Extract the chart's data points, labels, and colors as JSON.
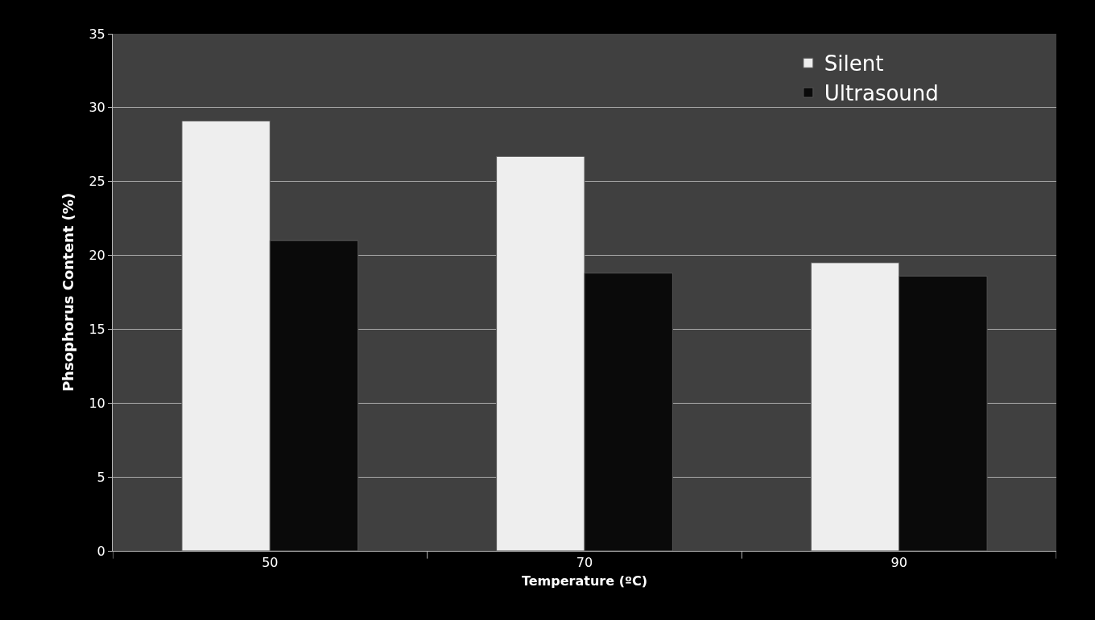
{
  "chart_data": {
    "type": "bar",
    "xlabel": "Temperature (ºC)",
    "ylabel": "Phsophorus Content (%)",
    "categories": [
      "50",
      "70",
      "90"
    ],
    "series": [
      {
        "name": "Silent",
        "color": "#eeeeee",
        "values": [
          29.1,
          26.7,
          19.5
        ]
      },
      {
        "name": "Ultrasound",
        "color": "#0a0a0a",
        "values": [
          21.0,
          18.8,
          18.6
        ]
      }
    ],
    "ylim": [
      0,
      35
    ],
    "yticks": [
      0,
      5,
      10,
      15,
      20,
      25,
      30,
      35
    ],
    "grid": "y",
    "legend": "top right"
  }
}
